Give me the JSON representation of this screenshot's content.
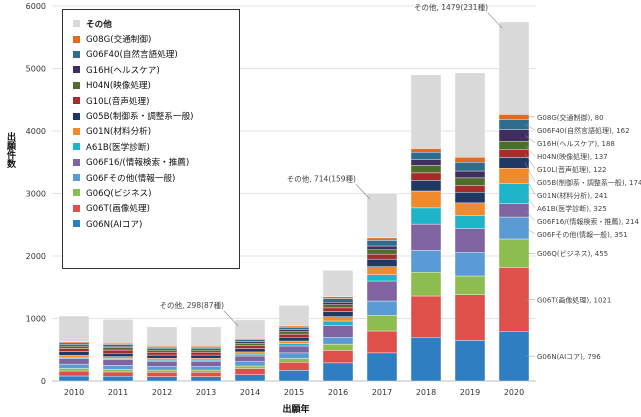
{
  "chart_data": {
    "type": "bar",
    "stacked": true,
    "ylabel": "出願件数",
    "xlabel": "出願年",
    "ylim": [
      0,
      6000
    ],
    "yticks": [
      0,
      1000,
      2000,
      3000,
      4000,
      5000,
      6000
    ],
    "grid": "horizontal",
    "legend_position": "top-left",
    "categories": [
      "2010",
      "2011",
      "2012",
      "2013",
      "2014",
      "2015",
      "2016",
      "2017",
      "2018",
      "2019",
      "2020"
    ],
    "series": [
      {
        "name": "G06N(AIコア)",
        "color": "#2f7ec1",
        "values": [
          80,
          75,
          70,
          70,
          100,
          170,
          290,
          450,
          700,
          650,
          796
        ]
      },
      {
        "name": "G06T(画像処理)",
        "color": "#e0504a",
        "values": [
          80,
          70,
          70,
          70,
          100,
          130,
          200,
          350,
          660,
          730,
          1021
        ]
      },
      {
        "name": "G06Q(ビジネス)",
        "color": "#8dbd4e",
        "values": [
          40,
          40,
          35,
          35,
          40,
          60,
          100,
          250,
          380,
          300,
          455
        ]
      },
      {
        "name": "G06Fその他(情報一般)",
        "color": "#5b9bd5",
        "values": [
          70,
          65,
          60,
          60,
          70,
          90,
          110,
          230,
          350,
          380,
          351
        ]
      },
      {
        "name": "G06F16/(情報検索・推薦)",
        "color": "#8064a2",
        "values": [
          90,
          90,
          80,
          80,
          90,
          110,
          190,
          320,
          420,
          380,
          214
        ]
      },
      {
        "name": "A61B(医学診断)",
        "color": "#1fb5c9",
        "values": [
          20,
          20,
          20,
          20,
          30,
          40,
          70,
          100,
          260,
          210,
          325
        ]
      },
      {
        "name": "G01N(材料分析)",
        "color": "#f08a2c",
        "values": [
          30,
          30,
          30,
          30,
          35,
          40,
          70,
          130,
          270,
          200,
          241
        ]
      },
      {
        "name": "G05B(制御系・調整系一般)",
        "color": "#1f3864",
        "values": [
          60,
          55,
          50,
          50,
          55,
          60,
          80,
          120,
          170,
          170,
          174
        ]
      },
      {
        "name": "G10L(音声処理)",
        "color": "#a62b2b",
        "values": [
          50,
          50,
          45,
          45,
          45,
          50,
          60,
          80,
          120,
          110,
          122
        ]
      },
      {
        "name": "H04N(映像処理)",
        "color": "#4e6d2a",
        "values": [
          40,
          40,
          35,
          35,
          40,
          40,
          50,
          70,
          120,
          120,
          137
        ]
      },
      {
        "name": "G16H(ヘルスケア)",
        "color": "#3f2f5e",
        "values": [
          20,
          20,
          20,
          20,
          25,
          30,
          40,
          60,
          90,
          110,
          188
        ]
      },
      {
        "name": "G06F40(自然言語処理)",
        "color": "#2e6b8d",
        "values": [
          30,
          30,
          25,
          25,
          30,
          40,
          60,
          90,
          120,
          140,
          162
        ]
      },
      {
        "name": "G08G(交通制御)",
        "color": "#e06a1e",
        "values": [
          20,
          20,
          15,
          15,
          20,
          20,
          30,
          40,
          60,
          80,
          80
        ]
      },
      {
        "name": "その他",
        "color": "#d9d9d9",
        "values": [
          410,
          380,
          310,
          310,
          298,
          330,
          420,
          714,
          1180,
          1350,
          1479
        ]
      }
    ],
    "annotations": [
      {
        "category": "2014",
        "text": "その他, 298(87種)"
      },
      {
        "category": "2017",
        "text": "その他, 714(159種)"
      },
      {
        "category": "2020",
        "text": "その他, 1479(231種)"
      }
    ],
    "end_labels": [
      "G06N(AIコア), 796",
      "G06T(画像処理), 1021",
      "G06Q(ビジネス), 455",
      "G06Fその他(情報一般), 351",
      "G06F16/(情報検索・推薦), 214",
      "A61B(医学診断), 325",
      "G01N(材料分析), 241",
      "G05B(制御系・調整系一般), 174",
      "G10L(音声処理), 122",
      "H04N(映像処理), 137",
      "G16H(ヘルスケア), 188",
      "G06F40(自然言語処理), 162",
      "G08G(交通制御), 80"
    ]
  }
}
